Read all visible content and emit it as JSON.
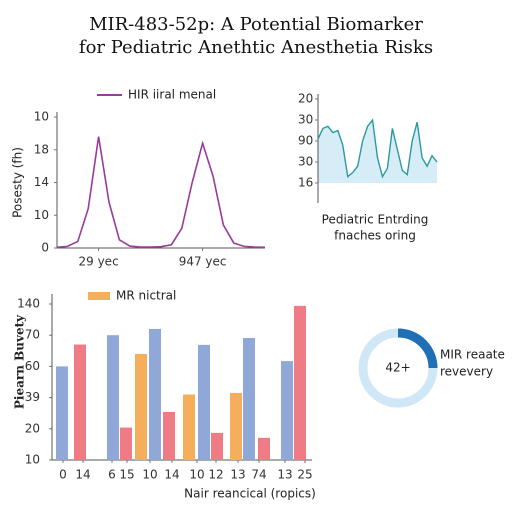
{
  "title": [
    "MIR-483-52p: A Potential Biomarker",
    "for Pediatric Anethtic Anesthetia Risks"
  ],
  "chart_data": [
    {
      "type": "line",
      "legend": "HIR iiral menal",
      "color": "#9b3a9e",
      "ylabel": "Posesty (fh)",
      "x": [
        0,
        1,
        2,
        3,
        4,
        5,
        6,
        7,
        8,
        9,
        10,
        11,
        12,
        13,
        14,
        15,
        16,
        17,
        18,
        19,
        20
      ],
      "values": [
        0.02,
        0.05,
        0.2,
        1.2,
        3.4,
        1.4,
        0.25,
        0.06,
        0.03,
        0.03,
        0.04,
        0.1,
        0.6,
        2.0,
        3.2,
        2.2,
        0.7,
        0.15,
        0.05,
        0.03,
        0.02
      ],
      "xlim": [
        0,
        20
      ],
      "xticks": [
        {
          "value": 4,
          "label": "29 yec"
        },
        {
          "value": 14,
          "label": "947 yec"
        }
      ],
      "ylim": [
        0,
        4
      ],
      "yticks": [
        {
          "value": 0,
          "label": "0"
        },
        {
          "value": 1,
          "label": "10"
        },
        {
          "value": 2,
          "label": "14"
        },
        {
          "value": 3,
          "label": "18"
        },
        {
          "value": 4,
          "label": "10"
        }
      ]
    },
    {
      "type": "area",
      "color": "#2a9a9e",
      "fill": "#d6ecf6",
      "caption": [
        "Pediatric Entrding",
        "fnaches oring"
      ],
      "values": [
        2.1,
        2.6,
        2.7,
        2.4,
        2.5,
        1.8,
        0.3,
        0.5,
        0.8,
        2.0,
        2.7,
        3.0,
        1.2,
        0.3,
        0.7,
        2.6,
        1.6,
        0.6,
        0.4,
        2.0,
        2.9,
        1.2,
        0.8,
        1.3,
        1.0
      ],
      "ylim": [
        0,
        4
      ],
      "yticks": [
        {
          "value": 0,
          "label": "16"
        },
        {
          "value": 1,
          "label": "30"
        },
        {
          "value": 2,
          "label": "90"
        },
        {
          "value": 3,
          "label": "30"
        },
        {
          "value": 4,
          "label": "20"
        }
      ]
    },
    {
      "type": "bar",
      "ylabel": "Piearn Buvety",
      "xlabel": "Nair reancical (ropics)",
      "legend": {
        "name": "MR nictral",
        "color": "#f5ae5b"
      },
      "x": [
        1.0,
        2.8,
        6.1,
        7.4,
        8.9,
        10.3,
        11.7,
        13.7,
        15.2,
        16.5,
        18.4,
        19.7,
        21.2,
        23.5,
        24.8
      ],
      "values": [
        3.0,
        3.7,
        4.0,
        1.04,
        3.4,
        4.2,
        1.54,
        2.1,
        3.69,
        0.87,
        2.15,
        3.91,
        0.71,
        3.17,
        4.94
      ],
      "colors": [
        "#8fa8d8",
        "#ef7b84",
        "#8fa8d8",
        "#ef7b84",
        "#f5ae5b",
        "#8fa8d8",
        "#ef7b84",
        "#f5ae5b",
        "#8fa8d8",
        "#ef7b84",
        "#f5ae5b",
        "#8fa8d8",
        "#ef7b84",
        "#8fa8d8",
        "#ef7b84"
      ],
      "xlim": [
        0,
        26
      ],
      "xticks": [
        {
          "value": 1.1,
          "label": "0"
        },
        {
          "value": 3.1,
          "label": "14"
        },
        {
          "value": 6.0,
          "label": "6"
        },
        {
          "value": 7.5,
          "label": "15"
        },
        {
          "value": 9.8,
          "label": "10"
        },
        {
          "value": 12.0,
          "label": "14"
        },
        {
          "value": 14.5,
          "label": "10"
        },
        {
          "value": 16.4,
          "label": "12"
        },
        {
          "value": 18.6,
          "label": "13"
        },
        {
          "value": 20.7,
          "label": "74"
        },
        {
          "value": 23.3,
          "label": "13"
        },
        {
          "value": 25.3,
          "label": "25"
        }
      ],
      "ylim": [
        0,
        5
      ],
      "yticks": [
        {
          "value": 0,
          "label": "10"
        },
        {
          "value": 1,
          "label": "20"
        },
        {
          "value": 2,
          "label": "39"
        },
        {
          "value": 3,
          "label": "60"
        },
        {
          "value": 4,
          "label": "70"
        },
        {
          "value": 5,
          "label": "140"
        }
      ]
    },
    {
      "type": "donut",
      "value": 25,
      "center_label": "42+",
      "caption": [
        "MIR reaate",
        "revevery"
      ],
      "color": "#1f6fb5",
      "track": "#cfe7f6"
    }
  ]
}
